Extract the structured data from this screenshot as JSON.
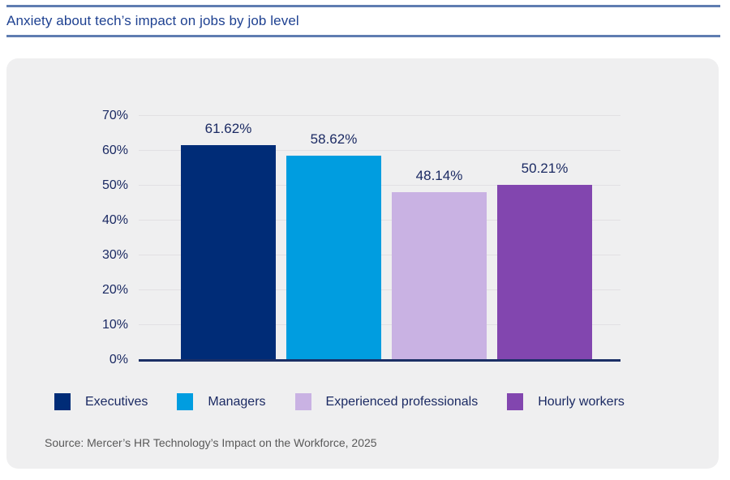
{
  "header": {
    "title": "Anxiety about tech’s impact on jobs by job level"
  },
  "chart_data": {
    "type": "bar",
    "title": "Anxiety about tech’s impact on jobs by job level",
    "categories": [
      "Executives",
      "Managers",
      "Experienced professionals",
      "Hourly workers"
    ],
    "values": [
      61.62,
      58.62,
      48.14,
      50.21
    ],
    "value_labels": [
      "61.62%",
      "58.62%",
      "48.14%",
      "50.21%"
    ],
    "bar_colors": [
      "#002C77",
      "#009DE0",
      "#C9B2E3",
      "#8246AF"
    ],
    "xlabel": "",
    "ylabel": "",
    "ylim": [
      0,
      70
    ],
    "yticks": [
      "0%",
      "10%",
      "20%",
      "30%",
      "40%",
      "50%",
      "60%",
      "70%"
    ],
    "grid": true,
    "legend_position": "bottom"
  },
  "legend": {
    "items": [
      {
        "label": "Executives",
        "color": "#002C77"
      },
      {
        "label": "Managers",
        "color": "#009DE0"
      },
      {
        "label": "Experienced professionals",
        "color": "#C9B2E3"
      },
      {
        "label": "Hourly workers",
        "color": "#8246AF"
      }
    ]
  },
  "source": {
    "text": "Source: Mercer’s HR Technology’s Impact on the Workforce, 2025"
  },
  "colors": {
    "title_text": "#1E4191",
    "rule": "#5F7DB1",
    "card_bg": "#EFEFF0",
    "grid_line": "#E1E0E3",
    "axis_line": "#1B2F66",
    "chart_text": "#1B2A63",
    "source_text": "#595959"
  }
}
